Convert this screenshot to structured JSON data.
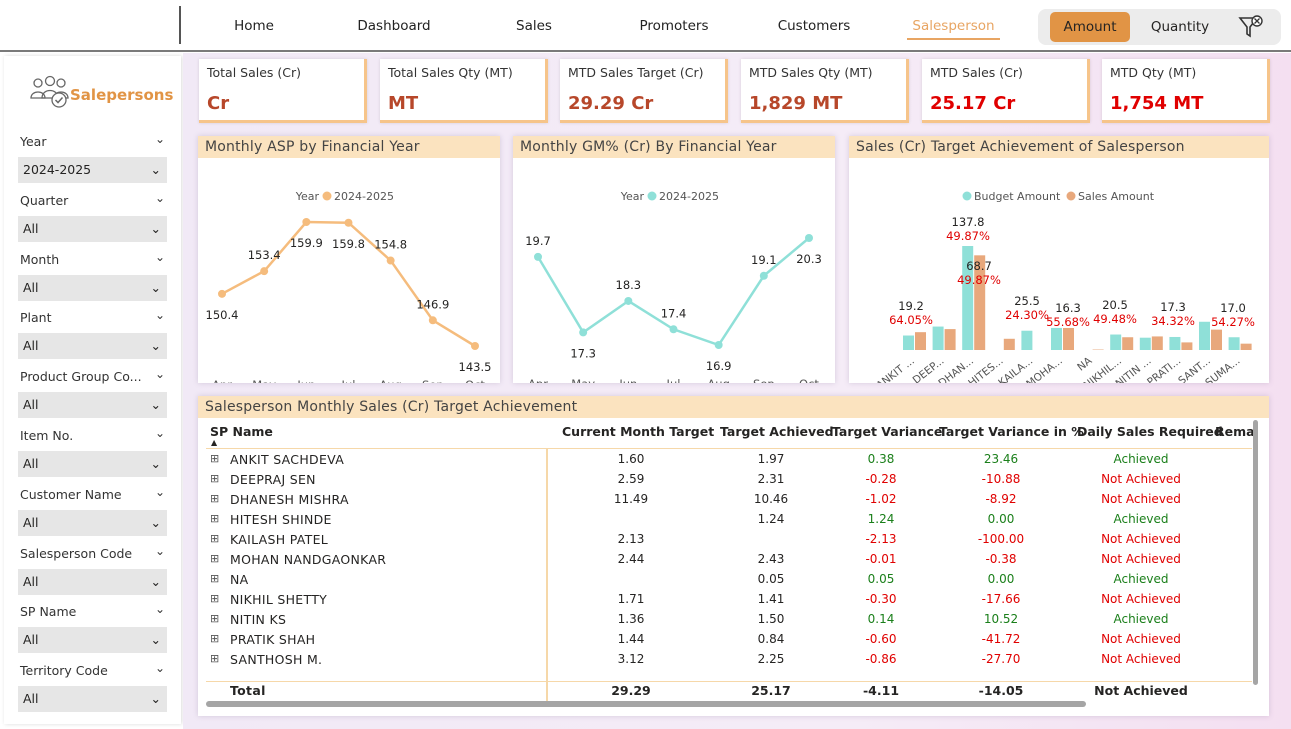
{
  "nav": {
    "items": [
      "Home",
      "Dashboard",
      "Sales",
      "Promoters",
      "Customers",
      "Salesperson"
    ],
    "active": "Salesperson"
  },
  "toggle": {
    "amount": "Amount",
    "quantity": "Quantity"
  },
  "sidebar": {
    "title": "Salepersons",
    "filters": [
      {
        "label": "Year",
        "value": "2024-2025"
      },
      {
        "label": "Quarter",
        "value": "All"
      },
      {
        "label": "Month",
        "value": "All"
      },
      {
        "label": "Plant",
        "value": "All"
      },
      {
        "label": "Product Group Co...",
        "value": "All"
      },
      {
        "label": "Item No.",
        "value": "All"
      },
      {
        "label": "Customer Name",
        "value": "All"
      },
      {
        "label": "Salesperson Code",
        "value": "All"
      },
      {
        "label": "SP Name",
        "value": "All"
      },
      {
        "label": "Territory Code",
        "value": "All"
      }
    ]
  },
  "kpis": [
    {
      "label": "Total Sales (Cr)",
      "value": "Cr",
      "color": "#B7472A"
    },
    {
      "label": "Total Sales Qty (MT)",
      "value": "MT",
      "color": "#B7472A"
    },
    {
      "label": "MTD Sales Target (Cr)",
      "value": "29.29 Cr",
      "color": "#B7472A"
    },
    {
      "label": "MTD Sales Qty (MT)",
      "value": "1,829 MT",
      "color": "#B7472A"
    },
    {
      "label": "MTD Sales (Cr)",
      "value": "25.17 Cr",
      "color": "#e00000"
    },
    {
      "label": "MTD Qty (MT)",
      "value": "1,754 MT",
      "color": "#e00000"
    }
  ],
  "asp_chart": {
    "title": "Monthly ASP by Financial Year",
    "legend_title": "Year",
    "legend_series": "2024-2025"
  },
  "gm_chart": {
    "title": "Monthly GM% (Cr) By Financial Year",
    "legend_title": "Year",
    "legend_series": "2024-2025"
  },
  "target_chart": {
    "title": "Sales (Cr) Target Achievement of Salesperson",
    "legend": [
      "Budget Amount",
      "Sales Amount"
    ]
  },
  "chart_data": [
    {
      "type": "line",
      "title": "Monthly ASP by Financial Year",
      "categories": [
        "Apr",
        "May",
        "Jun",
        "Jul",
        "Aug",
        "Sep",
        "Oct"
      ],
      "series": [
        {
          "name": "2024-2025",
          "values": [
            150.4,
            153.4,
            159.9,
            159.8,
            154.8,
            146.9,
            143.5
          ]
        }
      ],
      "color": "#F5BC7D"
    },
    {
      "type": "line",
      "title": "Monthly GM% (Cr) By Financial Year",
      "categories": [
        "Apr",
        "May",
        "Jun",
        "Jul",
        "Aug",
        "Sep",
        "Oct"
      ],
      "series": [
        {
          "name": "2024-2025",
          "values": [
            19.7,
            17.3,
            18.3,
            17.4,
            16.9,
            19.1,
            20.3
          ]
        }
      ],
      "color": "#8FE0D8"
    },
    {
      "type": "bar",
      "title": "Sales (Cr) Target Achievement of Salesperson",
      "categories": [
        "ANKIT ...",
        "DEEP...",
        "DHAN...",
        "HITES...",
        "KAILA...",
        "MOHA...",
        "NA",
        "NIKHIL...",
        "NITIN ...",
        "PRATI...",
        "SANT...",
        "SUMA..."
      ],
      "series": [
        {
          "name": "Budget Amount",
          "values": [
            1.6,
            2.59,
            11.49,
            0,
            2.13,
            2.44,
            0,
            1.71,
            1.36,
            1.44,
            3.12,
            1.41
          ]
        },
        {
          "name": "Sales Amount",
          "values": [
            1.97,
            2.31,
            10.46,
            1.24,
            0,
            2.43,
            0.05,
            1.41,
            1.5,
            0.84,
            2.25,
            0.7
          ]
        }
      ],
      "labels": [
        {
          "i": 0,
          "top": "19.2",
          "pct": "64.05%"
        },
        {
          "i": 2,
          "top": "137.8",
          "pct": "49.87%"
        },
        {
          "i": 2,
          "top": "68.7",
          "pct": "49.87%",
          "second": true
        },
        {
          "i": 4,
          "top": "25.5",
          "pct": "24.30%"
        },
        {
          "i": 5,
          "top": "16.3",
          "pct": "55.68%"
        },
        {
          "i": 7,
          "top": "20.5",
          "pct": "49.48%"
        },
        {
          "i": 9,
          "top": "17.3",
          "pct": "34.32%"
        },
        {
          "i": 11,
          "top": "17.0",
          "pct": "54.27%"
        }
      ]
    }
  ],
  "table": {
    "title": "Salesperson Monthly Sales (Cr) Target Achievement",
    "headers": [
      "SP Name",
      "Current Month Target",
      "Target Achieved",
      "Target Variance",
      "Target Variance in %",
      "Daily Sales Required",
      "Remai"
    ],
    "rows": [
      {
        "name": "ANKIT SACHDEVA",
        "target": "1.60",
        "achieved": "1.97",
        "variance": "0.38",
        "pct": "23.46",
        "status": "Achieved"
      },
      {
        "name": "DEEPRAJ SEN",
        "target": "2.59",
        "achieved": "2.31",
        "variance": "-0.28",
        "pct": "-10.88",
        "status": "Not Achieved"
      },
      {
        "name": "DHANESH MISHRA",
        "target": "11.49",
        "achieved": "10.46",
        "variance": "-1.02",
        "pct": "-8.92",
        "status": "Not Achieved"
      },
      {
        "name": "HITESH SHINDE",
        "target": "",
        "achieved": "1.24",
        "variance": "1.24",
        "pct": "0.00",
        "status": "Achieved"
      },
      {
        "name": "KAILASH PATEL",
        "target": "2.13",
        "achieved": "",
        "variance": "-2.13",
        "pct": "-100.00",
        "status": "Not Achieved"
      },
      {
        "name": "MOHAN NANDGAONKAR",
        "target": "2.44",
        "achieved": "2.43",
        "variance": "-0.01",
        "pct": "-0.38",
        "status": "Not Achieved"
      },
      {
        "name": "NA",
        "target": "",
        "achieved": "0.05",
        "variance": "0.05",
        "pct": "0.00",
        "status": "Achieved"
      },
      {
        "name": "NIKHIL SHETTY",
        "target": "1.71",
        "achieved": "1.41",
        "variance": "-0.30",
        "pct": "-17.66",
        "status": "Not Achieved"
      },
      {
        "name": "NITIN KS",
        "target": "1.36",
        "achieved": "1.50",
        "variance": "0.14",
        "pct": "10.52",
        "status": "Achieved"
      },
      {
        "name": "PRATIK SHAH",
        "target": "1.44",
        "achieved": "0.84",
        "variance": "-0.60",
        "pct": "-41.72",
        "status": "Not Achieved"
      },
      {
        "name": "SANTHOSH M.",
        "target": "3.12",
        "achieved": "2.25",
        "variance": "-0.86",
        "pct": "-27.70",
        "status": "Not Achieved"
      }
    ],
    "total": {
      "name": "Total",
      "target": "29.29",
      "achieved": "25.17",
      "variance": "-4.11",
      "pct": "-14.05",
      "status": "Not Achieved"
    }
  }
}
